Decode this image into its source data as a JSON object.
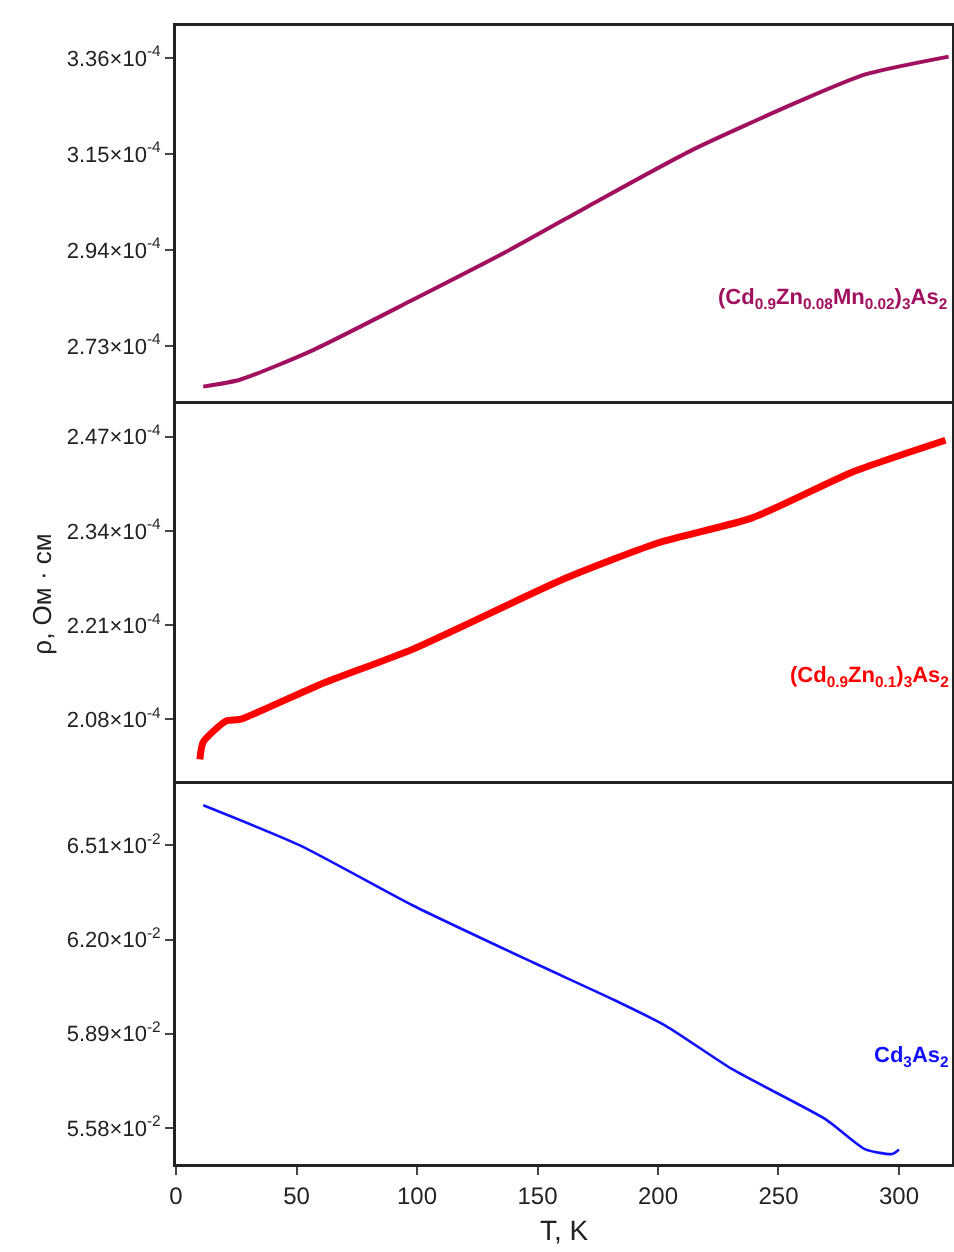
{
  "chart_data": [
    {
      "type": "line",
      "xlim": [
        0,
        322
      ],
      "ylim": [
        0.0002603,
        0.000343
      ],
      "yticks": [
        {
          "value": 0.000273,
          "label": "2.73×10$^{-4}$"
        },
        {
          "value": 0.000294,
          "label": "2.94×10$^{-4}$"
        },
        {
          "value": 0.000315,
          "label": "3.15×10$^{-4}$"
        },
        {
          "value": 0.000336,
          "label": "3.36×10$^{-4}$"
        }
      ],
      "tick_labels": "y",
      "grid": false,
      "legend": false,
      "marker": "none",
      "line_style": "solid",
      "series": [
        {
          "name": "(Cd$_{0.9}$Zn$_{0.08}$Mn$_{0.02}$)$_{3}$As$_{2}$",
          "color": "#a0105f",
          "x": [
            11.3,
            26.5,
            56.9,
            98.3,
            137,
            175.6,
            214.3,
            258.5,
            286,
            320.6
          ],
          "values": [
            0.0002641,
            0.0002656,
            0.0002721,
            0.0002831,
            0.0002936,
            0.0003049,
            0.0003159,
            0.0003265,
            0.0003324,
            0.0003363
          ]
        }
      ]
    },
    {
      "type": "line",
      "xlim": [
        0,
        322
      ],
      "ylim": [
        0.0001991,
        0.0002515
      ],
      "yticks": [
        {
          "value": 0.000208,
          "label": "2.08×10$^{-4}$"
        },
        {
          "value": 0.000221,
          "label": "2.21×10$^{-4}$"
        },
        {
          "value": 0.000234,
          "label": "2.34×10$^{-4}$"
        },
        {
          "value": 0.000247,
          "label": "2.47×10$^{-4}$"
        }
      ],
      "ylabel": "ρ, Ом · см",
      "tick_labels": "y",
      "grid": false,
      "legend": false,
      "marker": "none",
      "line_style": "solid",
      "series": [
        {
          "name": "(Cd$_{0.9}$Zn$_{0.1}$)$_{3}$As$_{2}$",
          "color": "#ff0000",
          "x": [
            9.9,
            11.3,
            20.9,
            26.5,
            59.6,
            98.3,
            161.8,
            200.5,
            239.1,
            280.6,
            319.3
          ],
          "values": [
            0.0002025,
            0.0002049,
            0.0002078,
            0.000208,
            0.0002128,
            0.0002177,
            0.0002275,
            0.0002324,
            0.0002358,
            0.0002421,
            0.0002465
          ]
        }
      ]
    },
    {
      "type": "line",
      "xlim": [
        0,
        322
      ],
      "ylim": [
        0.05461,
        0.06712
      ],
      "xticks": [
        0,
        50,
        100,
        150,
        200,
        250,
        300
      ],
      "yticks": [
        {
          "value": 0.0558,
          "label": "5.58×10$^{-2}$"
        },
        {
          "value": 0.0589,
          "label": "5.89×10$^{-2}$"
        },
        {
          "value": 0.062,
          "label": "6.20×10$^{-2}$"
        },
        {
          "value": 0.0651,
          "label": "6.51×10$^{-2}$"
        }
      ],
      "xlabel": "T, K",
      "grid": false,
      "legend": false,
      "marker": "none",
      "line_style": "solid",
      "series": [
        {
          "name": "Cd$_{3}$As$_{2}$",
          "color": "#1010ff",
          "x": [
            11.3,
            51.4,
            98.3,
            148,
            181,
            203.2,
            230.8,
            269.6,
            286.1,
            297.2,
            300
          ],
          "values": [
            0.06642,
            0.0651,
            0.06312,
            0.06125,
            0.06004,
            0.05916,
            0.05773,
            0.05608,
            0.05509,
            0.05494,
            0.05509
          ]
        }
      ]
    }
  ]
}
